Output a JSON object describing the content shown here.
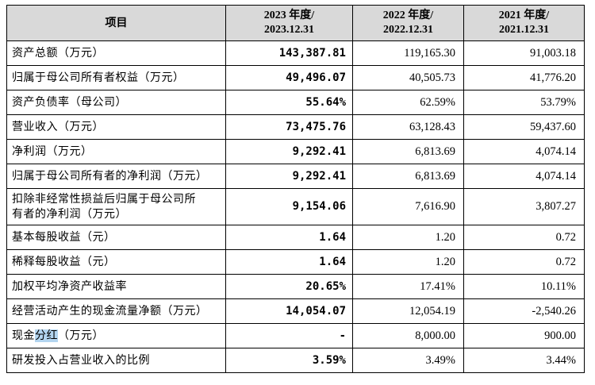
{
  "header": {
    "item": "项目",
    "y2023_line1": "2023 年度/",
    "y2023_line2": "2023.12.31",
    "y2022_line1": "2022 年度/",
    "y2022_line2": "2022.12.31",
    "y2021_line1": "2021 年度/",
    "y2021_line2": "2021.12.31"
  },
  "rows": [
    {
      "label": "资产总额（万元）",
      "y2023": "143,387.81",
      "y2022": "119,165.30",
      "y2021": "91,003.18"
    },
    {
      "label": "归属于母公司所有者权益（万元）",
      "y2023": "49,496.07",
      "y2022": "40,505.73",
      "y2021": "41,776.20"
    },
    {
      "label": "资产负债率（母公司）",
      "y2023": "55.64%",
      "y2022": "62.59%",
      "y2021": "53.79%"
    },
    {
      "label": "营业收入（万元）",
      "y2023": "73,475.76",
      "y2022": "63,128.43",
      "y2021": "59,437.60"
    },
    {
      "label": "净利润（万元）",
      "y2023": "9,292.41",
      "y2022": "6,813.69",
      "y2021": "4,074.14"
    },
    {
      "label": "归属于母公司所有者的净利润（万元）",
      "y2023": "9,292.41",
      "y2022": "6,813.69",
      "y2021": "4,074.14"
    },
    {
      "label_line1": "扣除非经常性损益后归属于母公司所",
      "label_line2": "有者的净利润（万元）",
      "y2023": "9,154.06",
      "y2022": "7,616.90",
      "y2021": "3,807.27"
    },
    {
      "label": "基本每股收益（元）",
      "y2023": "1.64",
      "y2022": "1.20",
      "y2021": "0.72"
    },
    {
      "label": "稀释每股收益（元）",
      "y2023": "1.64",
      "y2022": "1.20",
      "y2021": "0.72"
    },
    {
      "label": "加权平均净资产收益率",
      "y2023": "20.65%",
      "y2022": "17.41%",
      "y2021": "10.11%"
    },
    {
      "label": "经营活动产生的现金流量净额（万元）",
      "y2023": "14,054.07",
      "y2022": "12,054.19",
      "y2021": "-2,540.26"
    },
    {
      "label_pre": "现金",
      "label_hl": "分红",
      "label_post": "（万元）",
      "y2023": "-",
      "y2022": "8,000.00",
      "y2021": "900.00"
    },
    {
      "label": "研发投入占营业收入的比例",
      "y2023": "3.59%",
      "y2022": "3.49%",
      "y2021": "3.44%"
    }
  ],
  "colors": {
    "header_bg": "#d9d9d9",
    "selection_highlight": "#b3d5f0"
  }
}
